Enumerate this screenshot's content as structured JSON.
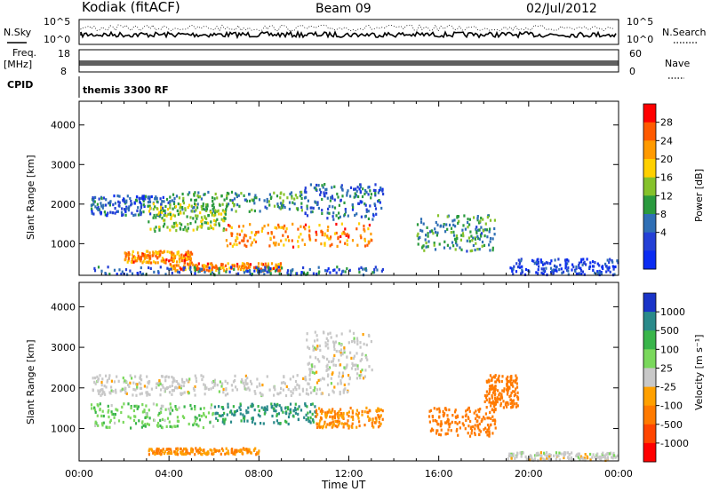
{
  "header": {
    "station": "Kodiak (fitACF)",
    "beam": "Beam 09",
    "date": "02/Jul/2012"
  },
  "top_panels": {
    "nsky_label": "N.Sky",
    "nsearch_label": "N.Search",
    "freq_label": "Freq.",
    "freq_unit": "[MHz]",
    "nave_label": "Nave",
    "cpid_label": "CPID",
    "cpid_text": "themis 3300 RF",
    "noise_ticks_left": [
      "10^5",
      "10^0"
    ],
    "noise_ticks_right": [
      "10^5",
      "10^0"
    ],
    "freq_ticks": [
      "18",
      "8"
    ],
    "nave_ticks": [
      "60",
      "0"
    ]
  },
  "colorbars": {
    "power": {
      "label": "Power [dB]",
      "ticks": [
        "28",
        "24",
        "20",
        "16",
        "12",
        "8",
        "4"
      ],
      "colors": [
        "#ff0000",
        "#ff5a00",
        "#ff9a00",
        "#ffd000",
        "#85c22b",
        "#2a9a3e",
        "#2f6fb5",
        "#2440d6",
        "#0b2cf2"
      ]
    },
    "velocity": {
      "label": "Velocity [m s⁻¹]",
      "ticks": [
        "1000",
        "500",
        "100",
        "25",
        "-25",
        "-100",
        "-500",
        "-1000"
      ],
      "colors": [
        "#1a34c8",
        "#2a8a8a",
        "#39b54a",
        "#7ad85c",
        "#c8c8c8",
        "#ffa000",
        "#ff7a00",
        "#ff4500",
        "#ff0000"
      ]
    }
  },
  "chart_data": {
    "type": "heatmap",
    "xlabel": "Time UT",
    "x_ticks": [
      "00:00",
      "04:00",
      "08:00",
      "12:00",
      "16:00",
      "20:00",
      "00:00"
    ],
    "xlim": [
      0,
      24
    ],
    "panels": [
      {
        "name": "power",
        "ylabel": "Slant Range [km]",
        "y_ticks": [
          "1000",
          "2000",
          "3000",
          "4000"
        ],
        "ylim": [
          200,
          4600
        ],
        "bands": [
          {
            "t": [
              0.5,
              4.0
            ],
            "r": [
              1700,
              2200
            ],
            "v": 8
          },
          {
            "t": [
              4.0,
              10.0
            ],
            "r": [
              1800,
              2300
            ],
            "v": 12
          },
          {
            "t": [
              10.0,
              13.5
            ],
            "r": [
              1600,
              2500
            ],
            "v": 8
          },
          {
            "t": [
              3.0,
              6.5
            ],
            "r": [
              1300,
              2000
            ],
            "v": 16
          },
          {
            "t": [
              6.5,
              13.0
            ],
            "r": [
              900,
              1500
            ],
            "v": 24
          },
          {
            "t": [
              2.0,
              5.0
            ],
            "r": [
              500,
              800
            ],
            "v": 24
          },
          {
            "t": [
              4.0,
              9.0
            ],
            "r": [
              300,
              500
            ],
            "v": 24
          },
          {
            "t": [
              0.5,
              13.5
            ],
            "r": [
              200,
              400
            ],
            "v": 8
          },
          {
            "t": [
              15.0,
              18.5
            ],
            "r": [
              800,
              1700
            ],
            "v": 12
          },
          {
            "t": [
              19.0,
              24.0
            ],
            "r": [
              200,
              600
            ],
            "v": 4
          }
        ]
      },
      {
        "name": "velocity",
        "ylabel": "Slant Range [km]",
        "y_ticks": [
          "1000",
          "2000",
          "3000",
          "4000"
        ],
        "ylim": [
          200,
          4600
        ],
        "bands": [
          {
            "t": [
              0.5,
              5.0
            ],
            "r": [
              1800,
              2300
            ],
            "v": 0
          },
          {
            "t": [
              5.0,
              12.0
            ],
            "r": [
              1800,
              2300
            ],
            "v": 0
          },
          {
            "t": [
              10.0,
              13.0
            ],
            "r": [
              2200,
              3400
            ],
            "v": 0
          },
          {
            "t": [
              0.5,
              6.0
            ],
            "r": [
              1000,
              1600
            ],
            "v": 50
          },
          {
            "t": [
              6.0,
              10.5
            ],
            "r": [
              1100,
              1600
            ],
            "v": 300
          },
          {
            "t": [
              10.5,
              13.5
            ],
            "r": [
              1000,
              1500
            ],
            "v": -100
          },
          {
            "t": [
              3.0,
              8.0
            ],
            "r": [
              350,
              500
            ],
            "v": -100
          },
          {
            "t": [
              15.5,
              18.5
            ],
            "r": [
              800,
              1500
            ],
            "v": -300
          },
          {
            "t": [
              18.0,
              19.5
            ],
            "r": [
              1500,
              2300
            ],
            "v": -300
          },
          {
            "t": [
              19.0,
              24.0
            ],
            "r": [
              200,
              400
            ],
            "v": 0
          }
        ]
      }
    ]
  }
}
